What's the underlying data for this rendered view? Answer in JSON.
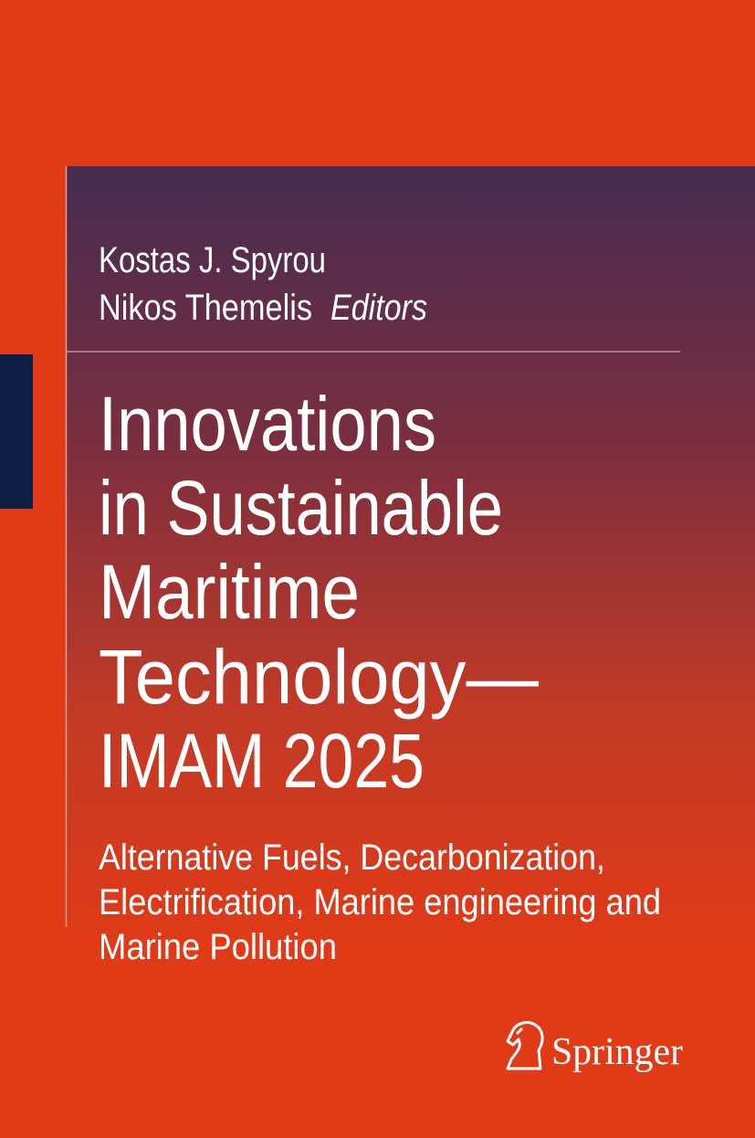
{
  "authors": [
    "Kostas J. Spyrou",
    "Nikos Themelis"
  ],
  "role": "Editors",
  "title_lines": [
    "Innovations",
    "in Sustainable",
    "Maritime",
    "Technology—",
    "IMAM 2025"
  ],
  "subtitle_lines": [
    "Alternative Fuels, Decarbonization,",
    "Electrification, Marine engineering and",
    "Marine Pollution"
  ],
  "publisher": "Springer"
}
